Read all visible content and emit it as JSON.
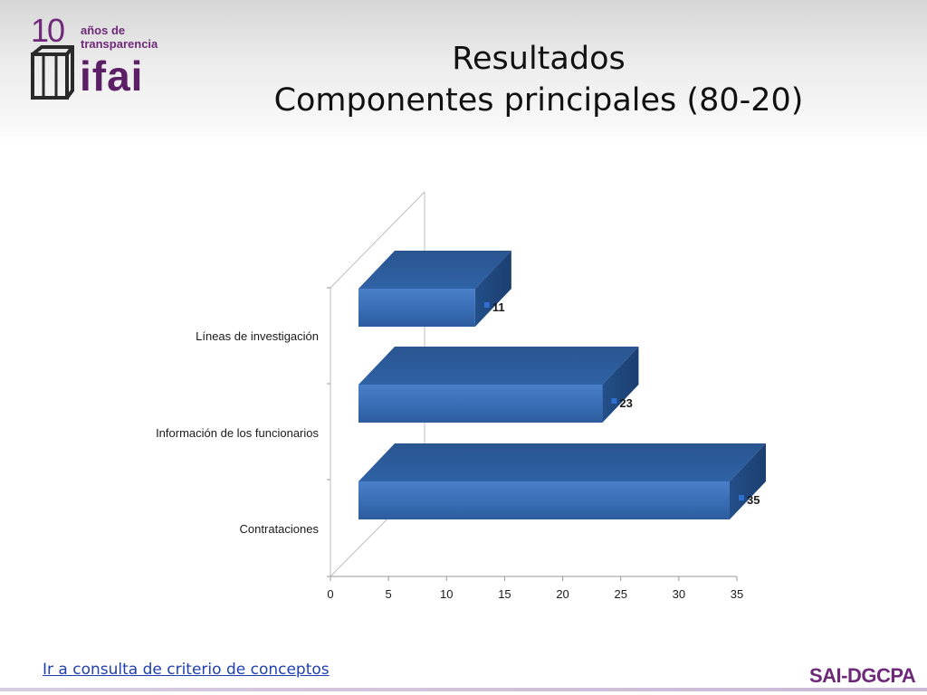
{
  "logo": {
    "number": "10",
    "tagline_line1": "años de",
    "tagline_line2": "transparencia",
    "brand": "ifai"
  },
  "title": {
    "line1": "Resultados",
    "line2": "Componentes principales (80-20)"
  },
  "footer": {
    "link_text": "Ir a consulta de criterio de conceptos",
    "brand": "SAI-DGCPA"
  },
  "colors": {
    "bar_front": "#3a6fb8",
    "bar_top": "#2b5d9e",
    "bar_side": "#1f4a82",
    "accent_purple": "#6e2a78",
    "link": "#1f3fb0"
  },
  "chart_data": {
    "type": "bar",
    "orientation": "horizontal",
    "style": "3d",
    "categories": [
      "Contrataciones",
      "Información de los funcionarios",
      "Líneas de investigación"
    ],
    "values": [
      35,
      23,
      11
    ],
    "data_labels": [
      "35",
      "23",
      "11"
    ],
    "xlim": [
      0,
      35
    ],
    "x_ticks": [
      "0",
      "5",
      "10",
      "15",
      "20",
      "25",
      "30",
      "35"
    ],
    "grid": false,
    "legend": "none"
  }
}
